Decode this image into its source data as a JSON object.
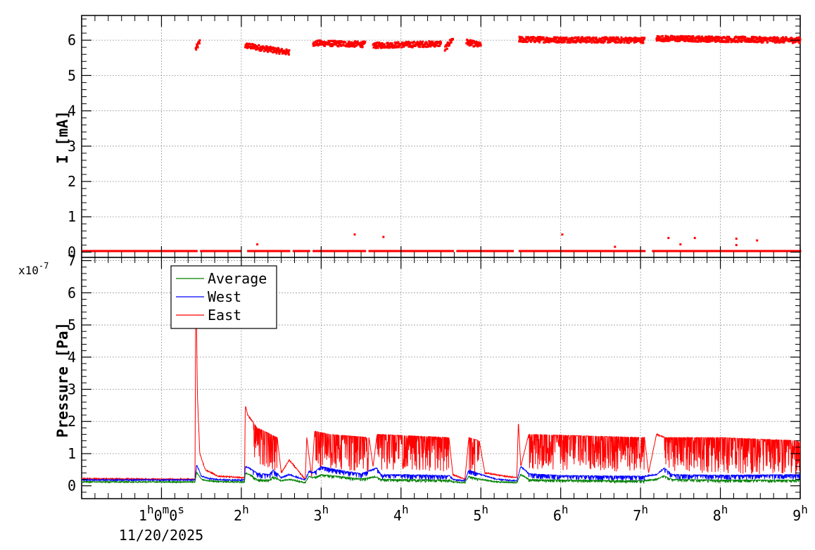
{
  "chart_data": [
    {
      "type": "scatter",
      "ylabel": "I [mA]",
      "ylim": [
        -0.15,
        6.7
      ],
      "yticks": [
        "0",
        "1",
        "2",
        "3",
        "4",
        "5",
        "6"
      ],
      "xlim": [
        0,
        9
      ],
      "grid": true,
      "color": "#ff0000",
      "series": [
        {
          "segments": [
            {
              "x": [
                1.43,
                1.48
              ],
              "y": [
                5.75,
                5.95
              ]
            },
            {
              "x": [
                2.05,
                2.6
              ],
              "y": [
                5.85,
                5.65
              ]
            },
            {
              "x": [
                2.9,
                3.55
              ],
              "y": [
                5.92,
                5.88
              ]
            },
            {
              "x": [
                3.65,
                4.5
              ],
              "y": [
                5.85,
                5.9
              ]
            },
            {
              "x": [
                4.55,
                4.65
              ],
              "y": [
                5.75,
                6.05
              ]
            },
            {
              "x": [
                4.82,
                5.0
              ],
              "y": [
                5.95,
                5.85
              ]
            },
            {
              "x": [
                5.48,
                7.05
              ],
              "y": [
                6.02,
                6.0
              ]
            },
            {
              "x": [
                7.2,
                9.0
              ],
              "y": [
                6.05,
                6.0
              ]
            }
          ],
          "zero_points": true,
          "outliers": [
            {
              "x": 2.2,
              "y": 0.22
            },
            {
              "x": 3.42,
              "y": 0.5
            },
            {
              "x": 3.78,
              "y": 0.43
            },
            {
              "x": 6.02,
              "y": 0.5
            },
            {
              "x": 6.68,
              "y": 0.15
            },
            {
              "x": 7.35,
              "y": 0.4
            },
            {
              "x": 7.5,
              "y": 0.22
            },
            {
              "x": 7.68,
              "y": 0.4
            },
            {
              "x": 8.2,
              "y": 0.38
            },
            {
              "x": 8.2,
              "y": 0.2
            },
            {
              "x": 8.46,
              "y": 0.33
            }
          ]
        }
      ]
    },
    {
      "type": "line",
      "ylabel": "Pressure [Pa]",
      "yexponent": "x10",
      "yexponent_power": "-7",
      "ylim": [
        -0.4,
        7.1
      ],
      "yticks": [
        "0",
        "1",
        "2",
        "3",
        "4",
        "5",
        "6",
        "7"
      ],
      "xlim": [
        0,
        9
      ],
      "xticks": [
        {
          "x": 1,
          "hour": "1",
          "h": "h",
          "minute": "0",
          "m": "m",
          "second": "0",
          "s": "s"
        },
        {
          "x": 2,
          "hour": "2",
          "h": "h"
        },
        {
          "x": 3,
          "hour": "3",
          "h": "h"
        },
        {
          "x": 4,
          "hour": "4",
          "h": "h"
        },
        {
          "x": 5,
          "hour": "5",
          "h": "h"
        },
        {
          "x": 6,
          "hour": "6",
          "h": "h"
        },
        {
          "x": 7,
          "hour": "7",
          "h": "h"
        },
        {
          "x": 8,
          "hour": "8",
          "h": "h"
        },
        {
          "x": 9,
          "hour": "9",
          "h": "h"
        }
      ],
      "date": "11/20/2025",
      "grid": true,
      "legend_position": "top-left",
      "series": [
        {
          "name": "Average",
          "color": "#008000",
          "x": [
            0,
            1.42,
            1.44,
            1.5,
            1.6,
            1.8,
            2.04,
            2.05,
            2.1,
            2.2,
            2.35,
            2.4,
            2.5,
            2.6,
            2.8,
            2.85,
            2.9,
            3.0,
            3.2,
            3.5,
            3.7,
            3.75,
            4.0,
            4.6,
            4.65,
            4.8,
            4.85,
            5.0,
            5.2,
            5.45,
            5.5,
            5.6,
            6.0,
            7.05,
            7.2,
            7.3,
            7.4,
            8.0,
            9.0
          ],
          "y": [
            0.12,
            0.12,
            0.42,
            0.2,
            0.15,
            0.12,
            0.12,
            0.4,
            0.35,
            0.2,
            0.18,
            0.3,
            0.15,
            0.2,
            0.1,
            0.3,
            0.25,
            0.35,
            0.3,
            0.22,
            0.28,
            0.2,
            0.2,
            0.18,
            0.12,
            0.1,
            0.3,
            0.2,
            0.12,
            0.1,
            0.35,
            0.2,
            0.18,
            0.16,
            0.2,
            0.3,
            0.2,
            0.18,
            0.18
          ],
          "noise": 0.08
        },
        {
          "name": "West",
          "color": "#0000ff",
          "x": [
            0,
            1.42,
            1.44,
            1.5,
            1.6,
            1.8,
            2.04,
            2.05,
            2.1,
            2.2,
            2.35,
            2.4,
            2.5,
            2.6,
            2.8,
            2.85,
            2.9,
            3.0,
            3.2,
            3.5,
            3.7,
            3.75,
            4.0,
            4.6,
            4.65,
            4.8,
            4.85,
            5.0,
            5.2,
            5.45,
            5.5,
            5.6,
            6.0,
            7.05,
            7.2,
            7.3,
            7.4,
            8.0,
            9.0
          ],
          "y": [
            0.18,
            0.18,
            0.65,
            0.3,
            0.22,
            0.18,
            0.18,
            0.6,
            0.55,
            0.4,
            0.35,
            0.5,
            0.25,
            0.35,
            0.18,
            0.45,
            0.4,
            0.6,
            0.5,
            0.38,
            0.55,
            0.35,
            0.35,
            0.32,
            0.2,
            0.15,
            0.5,
            0.35,
            0.2,
            0.15,
            0.6,
            0.38,
            0.32,
            0.3,
            0.35,
            0.55,
            0.35,
            0.33,
            0.35
          ],
          "noise": 0.15
        },
        {
          "name": "East",
          "color": "#ff0000",
          "x": [
            0,
            1.42,
            1.43,
            1.45,
            1.48,
            1.55,
            1.7,
            2.04,
            2.05,
            2.08,
            2.2,
            2.45,
            2.5,
            2.6,
            2.8,
            2.82,
            2.88,
            2.92,
            3.1,
            3.6,
            3.65,
            3.7,
            4.6,
            4.65,
            4.8,
            4.85,
            4.98,
            5.05,
            5.3,
            5.45,
            5.47,
            5.5,
            5.6,
            7.05,
            7.1,
            7.2,
            7.3,
            8.0,
            9.0
          ],
          "y": [
            0.22,
            0.2,
            6.9,
            2.8,
            1.0,
            0.5,
            0.3,
            0.25,
            2.5,
            2.2,
            1.8,
            1.5,
            0.4,
            0.8,
            0.2,
            1.5,
            0.3,
            1.7,
            1.6,
            1.5,
            0.6,
            1.6,
            1.5,
            0.35,
            0.2,
            1.5,
            1.4,
            0.4,
            0.3,
            0.25,
            2.0,
            0.6,
            1.6,
            1.5,
            0.4,
            1.6,
            1.5,
            1.5,
            1.4
          ],
          "noise": 1.1
        }
      ]
    }
  ]
}
